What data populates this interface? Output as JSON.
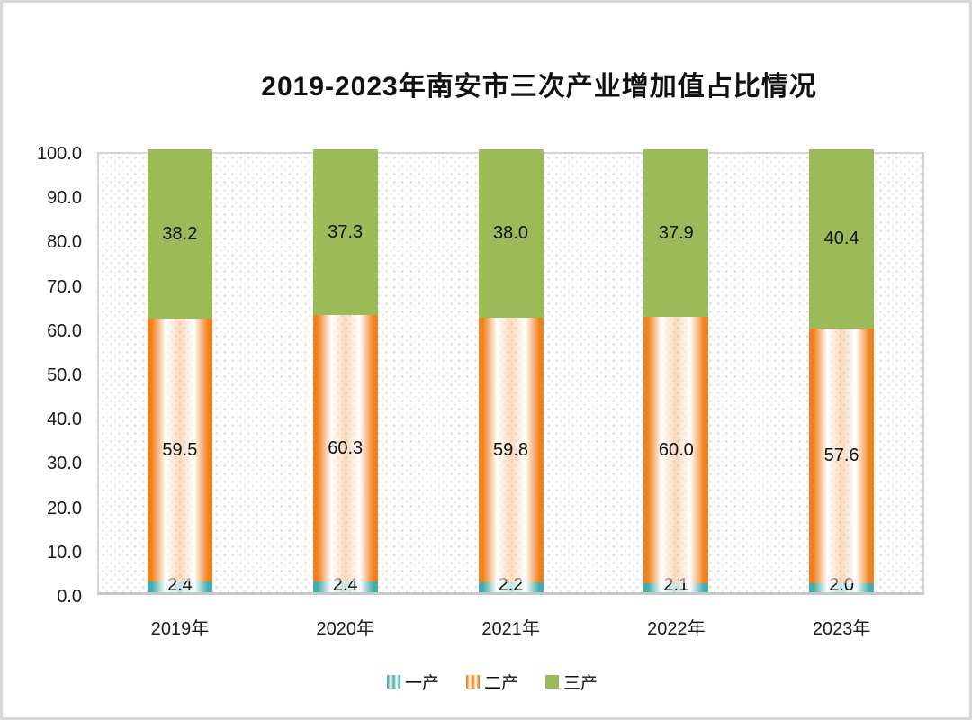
{
  "title": "2019-2023年南安市三次产业增加值占比情况",
  "chart_data": {
    "type": "bar",
    "subtype": "stacked-column",
    "categories": [
      "2019年",
      "2020年",
      "2021年",
      "2022年",
      "2023年"
    ],
    "series": [
      {
        "name": "一产",
        "color": "#45ADA9",
        "fill": "striped-gradient",
        "values": [
          2.4,
          2.4,
          2.2,
          2.1,
          2.0
        ]
      },
      {
        "name": "二产",
        "color": "#F0821E",
        "fill": "striped-gradient",
        "values": [
          59.5,
          60.3,
          59.8,
          60.0,
          57.6
        ]
      },
      {
        "name": "三产",
        "color": "#9BBB59",
        "fill": "solid",
        "values": [
          38.2,
          37.3,
          38.0,
          37.9,
          40.4
        ]
      }
    ],
    "ylabel": "",
    "xlabel": "",
    "ylim": [
      0,
      100
    ],
    "y_ticks": [
      "0.0",
      "10.0",
      "20.0",
      "30.0",
      "40.0",
      "50.0",
      "60.0",
      "70.0",
      "80.0",
      "90.0",
      "100.0"
    ],
    "grid": false,
    "legend_position": "bottom",
    "data_labels": true,
    "plot_background": "dotted-pattern"
  },
  "colors": {
    "axis_border": "#d4d4d4",
    "outer_border": "#d9d9d9",
    "pattern_dot": "#d7d7d7",
    "label_text": "#111111"
  }
}
